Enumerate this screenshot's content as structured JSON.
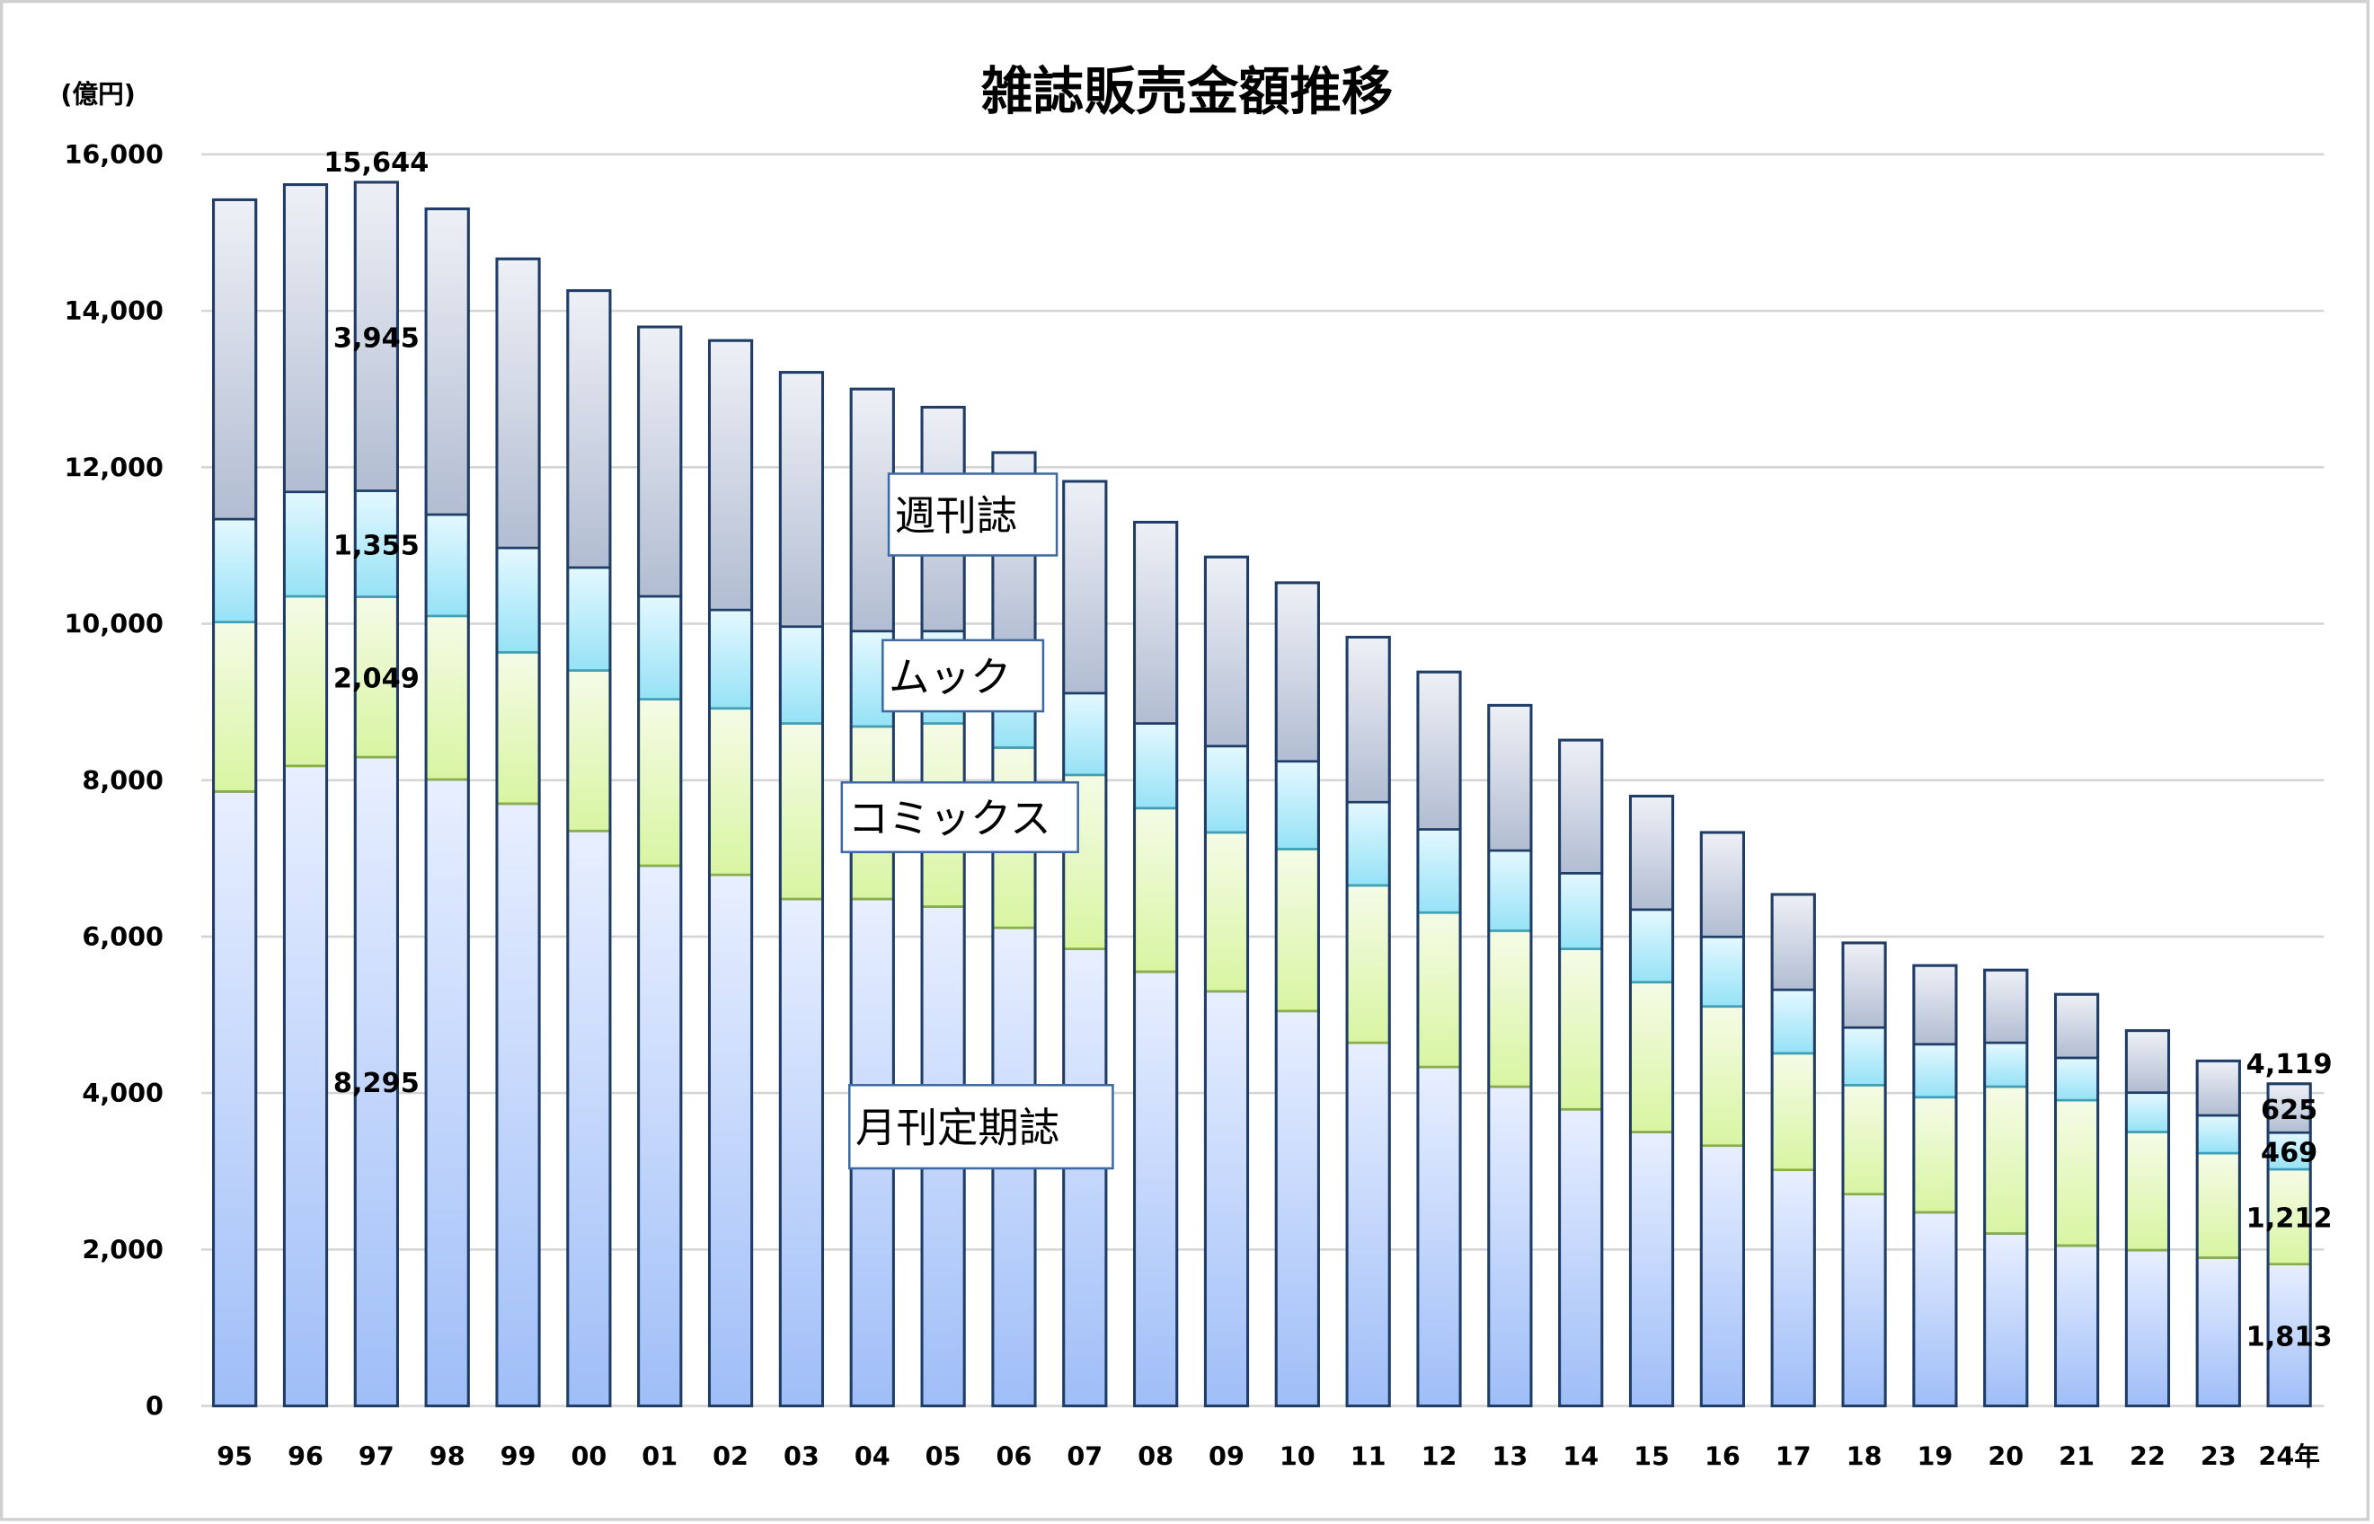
{
  "chart_data": {
    "type": "bar",
    "stacked": true,
    "title": "雑誌販売金額推移",
    "ylabel": "(億円)",
    "xlabel": "",
    "ylim": [
      0,
      16000
    ],
    "yticks": [
      "0",
      "2,000",
      "4,000",
      "6,000",
      "8,000",
      "10,000",
      "12,000",
      "14,000",
      "16,000"
    ],
    "grid": true,
    "categories": [
      "95",
      "96",
      "97",
      "98",
      "99",
      "00",
      "01",
      "02",
      "03",
      "04",
      "05",
      "06",
      "07",
      "08",
      "09",
      "10",
      "11",
      "12",
      "13",
      "14",
      "15",
      "16",
      "17",
      "18",
      "19",
      "20",
      "21",
      "22",
      "23",
      "24年"
    ],
    "series": [
      {
        "name": "月刊定期誌",
        "color": "#a9c4f5",
        "edge": "#2f5a8f",
        "values": [
          7855,
          8183,
          8295,
          8009,
          7700,
          7351,
          6907,
          6790,
          6481,
          6481,
          6384,
          6113,
          5843,
          5552,
          5301,
          5049,
          4643,
          4334,
          4082,
          3792,
          3502,
          3328,
          3018,
          2708,
          2476,
          2205,
          2051,
          1993,
          1896,
          1813
        ]
      },
      {
        "name": "コミックス",
        "color": "#d9f5a8",
        "edge": "#8aaf4a",
        "values": [
          2166,
          2167,
          2049,
          2090,
          1934,
          2051,
          2128,
          2128,
          2244,
          2205,
          2341,
          2303,
          2224,
          2090,
          2031,
          2070,
          2012,
          1973,
          1993,
          2051,
          1915,
          1779,
          1490,
          1393,
          1471,
          1877,
          1857,
          1509,
          1335,
          1212
        ]
      },
      {
        "name": "ムック",
        "color": "#a8e6f8",
        "edge": "#3fa0b8",
        "values": [
          1316,
          1335,
          1355,
          1296,
          1335,
          1316,
          1315,
          1258,
          1238,
          1219,
          1180,
          1238,
          1045,
          1083,
          1103,
          1122,
          1064,
          1064,
          1025,
          967,
          928,
          890,
          812,
          736,
          677,
          561,
          542,
          503,
          483,
          469
        ]
      },
      {
        "name": "週刊誌",
        "color": "#b8c2d6",
        "edge": "#1f3d66",
        "values": [
          4083,
          3928,
          3945,
          3908,
          3695,
          3540,
          3444,
          3444,
          3250,
          3095,
          2863,
          2534,
          2708,
          2573,
          2418,
          2283,
          2109,
          2012,
          1857,
          1702,
          1451,
          1335,
          1219,
          1083,
          1006,
          929,
          812,
          793,
          697,
          625
        ]
      }
    ],
    "data_labels": {
      "97": {
        "total": "15,644",
        "週刊誌": "3,945",
        "ムック": "1,355",
        "コミックス": "2,049",
        "月刊定期誌": "8,295"
      },
      "24年": {
        "total": "4,119",
        "週刊誌": "625",
        "ムック": "469",
        "コミックス": "1,212",
        "月刊定期誌": "1,813"
      }
    },
    "legend": "inline-labels"
  }
}
